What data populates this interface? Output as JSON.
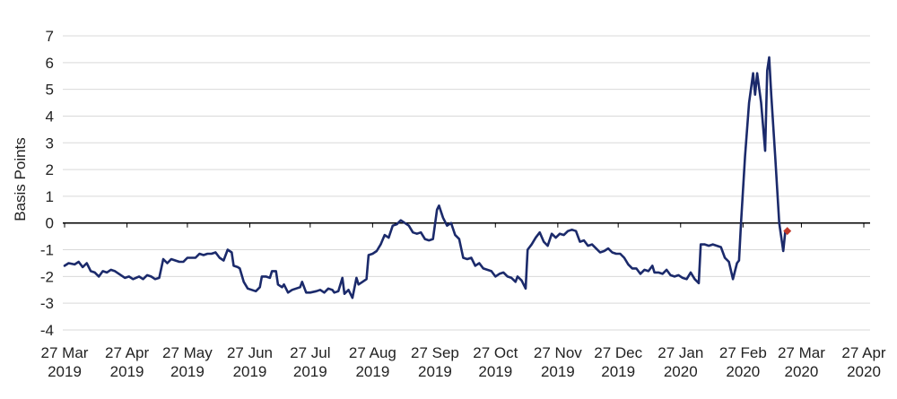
{
  "chart_data": {
    "type": "line",
    "title": "",
    "xlabel": "",
    "ylabel": "Basis Points",
    "ylim": [
      -4,
      7
    ],
    "yticks": [
      7,
      6,
      5,
      4,
      3,
      2,
      1,
      0,
      -1,
      -2,
      -3,
      -4
    ],
    "grid": true,
    "legend": "none",
    "x_ticks": [
      {
        "date": "2019-03-27",
        "line1": "27 Mar",
        "line2": "2019"
      },
      {
        "date": "2019-04-27",
        "line1": "27 Apr",
        "line2": "2019"
      },
      {
        "date": "2019-05-27",
        "line1": "27 May",
        "line2": "2019"
      },
      {
        "date": "2019-06-27",
        "line1": "27 Jun",
        "line2": "2019"
      },
      {
        "date": "2019-07-27",
        "line1": "27 Jul",
        "line2": "2019"
      },
      {
        "date": "2019-08-27",
        "line1": "27 Aug",
        "line2": "2019"
      },
      {
        "date": "2019-09-27",
        "line1": "27 Sep",
        "line2": "2019"
      },
      {
        "date": "2019-10-27",
        "line1": "27 Oct",
        "line2": "2019"
      },
      {
        "date": "2019-11-27",
        "line1": "27 Nov",
        "line2": "2019"
      },
      {
        "date": "2019-12-27",
        "line1": "27 Dec",
        "line2": "2019"
      },
      {
        "date": "2020-01-27",
        "line1": "27 Jan",
        "line2": "2020"
      },
      {
        "date": "2020-02-27",
        "line1": "27 Feb",
        "line2": "2020"
      },
      {
        "date": "2020-03-27",
        "line1": "27 Mar",
        "line2": "2020"
      },
      {
        "date": "2020-04-27",
        "line1": "27 Apr",
        "line2": "2020"
      }
    ],
    "series": [
      {
        "color": "#1b2a6b",
        "points": [
          {
            "x": "2019-03-27",
            "y": -1.6
          },
          {
            "x": "2019-03-29",
            "y": -1.5
          },
          {
            "x": "2019-04-01",
            "y": -1.55
          },
          {
            "x": "2019-04-03",
            "y": -1.45
          },
          {
            "x": "2019-04-05",
            "y": -1.65
          },
          {
            "x": "2019-04-07",
            "y": -1.5
          },
          {
            "x": "2019-04-09",
            "y": -1.8
          },
          {
            "x": "2019-04-11",
            "y": -1.85
          },
          {
            "x": "2019-04-13",
            "y": -2.0
          },
          {
            "x": "2019-04-15",
            "y": -1.8
          },
          {
            "x": "2019-04-17",
            "y": -1.85
          },
          {
            "x": "2019-04-19",
            "y": -1.75
          },
          {
            "x": "2019-04-21",
            "y": -1.8
          },
          {
            "x": "2019-04-23",
            "y": -1.9
          },
          {
            "x": "2019-04-26",
            "y": -2.05
          },
          {
            "x": "2019-04-28",
            "y": -2.0
          },
          {
            "x": "2019-04-30",
            "y": -2.1
          },
          {
            "x": "2019-05-03",
            "y": -2.0
          },
          {
            "x": "2019-05-05",
            "y": -2.1
          },
          {
            "x": "2019-05-07",
            "y": -1.95
          },
          {
            "x": "2019-05-09",
            "y": -2.0
          },
          {
            "x": "2019-05-11",
            "y": -2.1
          },
          {
            "x": "2019-05-13",
            "y": -2.05
          },
          {
            "x": "2019-05-15",
            "y": -1.35
          },
          {
            "x": "2019-05-17",
            "y": -1.5
          },
          {
            "x": "2019-05-19",
            "y": -1.35
          },
          {
            "x": "2019-05-21",
            "y": -1.4
          },
          {
            "x": "2019-05-23",
            "y": -1.45
          },
          {
            "x": "2019-05-25",
            "y": -1.45
          },
          {
            "x": "2019-05-27",
            "y": -1.3
          },
          {
            "x": "2019-05-29",
            "y": -1.3
          },
          {
            "x": "2019-05-31",
            "y": -1.3
          },
          {
            "x": "2019-06-02",
            "y": -1.15
          },
          {
            "x": "2019-06-04",
            "y": -1.2
          },
          {
            "x": "2019-06-06",
            "y": -1.15
          },
          {
            "x": "2019-06-08",
            "y": -1.15
          },
          {
            "x": "2019-06-10",
            "y": -1.1
          },
          {
            "x": "2019-06-12",
            "y": -1.3
          },
          {
            "x": "2019-06-14",
            "y": -1.4
          },
          {
            "x": "2019-06-16",
            "y": -1.0
          },
          {
            "x": "2019-06-18",
            "y": -1.1
          },
          {
            "x": "2019-06-19",
            "y": -1.6
          },
          {
            "x": "2019-06-21",
            "y": -1.65
          },
          {
            "x": "2019-06-22",
            "y": -1.7
          },
          {
            "x": "2019-06-24",
            "y": -2.2
          },
          {
            "x": "2019-06-26",
            "y": -2.45
          },
          {
            "x": "2019-06-28",
            "y": -2.5
          },
          {
            "x": "2019-06-30",
            "y": -2.55
          },
          {
            "x": "2019-07-02",
            "y": -2.4
          },
          {
            "x": "2019-07-03",
            "y": -2.0
          },
          {
            "x": "2019-07-05",
            "y": -2.0
          },
          {
            "x": "2019-07-07",
            "y": -2.05
          },
          {
            "x": "2019-07-08",
            "y": -1.8
          },
          {
            "x": "2019-07-10",
            "y": -1.8
          },
          {
            "x": "2019-07-11",
            "y": -2.3
          },
          {
            "x": "2019-07-13",
            "y": -2.4
          },
          {
            "x": "2019-07-14",
            "y": -2.3
          },
          {
            "x": "2019-07-16",
            "y": -2.6
          },
          {
            "x": "2019-07-18",
            "y": -2.5
          },
          {
            "x": "2019-07-20",
            "y": -2.45
          },
          {
            "x": "2019-07-22",
            "y": -2.4
          },
          {
            "x": "2019-07-23",
            "y": -2.2
          },
          {
            "x": "2019-07-25",
            "y": -2.6
          },
          {
            "x": "2019-07-27",
            "y": -2.6
          },
          {
            "x": "2019-07-30",
            "y": -2.55
          },
          {
            "x": "2019-08-01",
            "y": -2.5
          },
          {
            "x": "2019-08-03",
            "y": -2.6
          },
          {
            "x": "2019-08-05",
            "y": -2.45
          },
          {
            "x": "2019-08-07",
            "y": -2.5
          },
          {
            "x": "2019-08-08",
            "y": -2.6
          },
          {
            "x": "2019-08-10",
            "y": -2.55
          },
          {
            "x": "2019-08-12",
            "y": -2.05
          },
          {
            "x": "2019-08-13",
            "y": -2.65
          },
          {
            "x": "2019-08-15",
            "y": -2.5
          },
          {
            "x": "2019-08-17",
            "y": -2.8
          },
          {
            "x": "2019-08-19",
            "y": -2.05
          },
          {
            "x": "2019-08-20",
            "y": -2.3
          },
          {
            "x": "2019-08-22",
            "y": -2.2
          },
          {
            "x": "2019-08-24",
            "y": -2.1
          },
          {
            "x": "2019-08-25",
            "y": -1.2
          },
          {
            "x": "2019-08-27",
            "y": -1.15
          },
          {
            "x": "2019-08-29",
            "y": -1.05
          },
          {
            "x": "2019-08-31",
            "y": -0.8
          },
          {
            "x": "2019-09-02",
            "y": -0.45
          },
          {
            "x": "2019-09-04",
            "y": -0.55
          },
          {
            "x": "2019-09-06",
            "y": -0.1
          },
          {
            "x": "2019-09-08",
            "y": -0.05
          },
          {
            "x": "2019-09-10",
            "y": 0.1
          },
          {
            "x": "2019-09-12",
            "y": 0.0
          },
          {
            "x": "2019-09-14",
            "y": -0.1
          },
          {
            "x": "2019-09-16",
            "y": -0.35
          },
          {
            "x": "2019-09-18",
            "y": -0.4
          },
          {
            "x": "2019-09-20",
            "y": -0.35
          },
          {
            "x": "2019-09-22",
            "y": -0.6
          },
          {
            "x": "2019-09-24",
            "y": -0.65
          },
          {
            "x": "2019-09-26",
            "y": -0.6
          },
          {
            "x": "2019-09-28",
            "y": 0.5
          },
          {
            "x": "2019-09-29",
            "y": 0.65
          },
          {
            "x": "2019-10-01",
            "y": 0.2
          },
          {
            "x": "2019-10-03",
            "y": -0.1
          },
          {
            "x": "2019-10-05",
            "y": 0.0
          },
          {
            "x": "2019-10-07",
            "y": -0.45
          },
          {
            "x": "2019-10-09",
            "y": -0.6
          },
          {
            "x": "2019-10-11",
            "y": -1.3
          },
          {
            "x": "2019-10-13",
            "y": -1.35
          },
          {
            "x": "2019-10-15",
            "y": -1.3
          },
          {
            "x": "2019-10-17",
            "y": -1.6
          },
          {
            "x": "2019-10-19",
            "y": -1.5
          },
          {
            "x": "2019-10-21",
            "y": -1.7
          },
          {
            "x": "2019-10-23",
            "y": -1.75
          },
          {
            "x": "2019-10-25",
            "y": -1.8
          },
          {
            "x": "2019-10-27",
            "y": -2.0
          },
          {
            "x": "2019-10-29",
            "y": -1.9
          },
          {
            "x": "2019-10-31",
            "y": -1.85
          },
          {
            "x": "2019-11-02",
            "y": -2.0
          },
          {
            "x": "2019-11-04",
            "y": -2.05
          },
          {
            "x": "2019-11-06",
            "y": -2.2
          },
          {
            "x": "2019-11-07",
            "y": -2.0
          },
          {
            "x": "2019-11-09",
            "y": -2.15
          },
          {
            "x": "2019-11-11",
            "y": -2.45
          },
          {
            "x": "2019-11-12",
            "y": -1.0
          },
          {
            "x": "2019-11-14",
            "y": -0.8
          },
          {
            "x": "2019-11-16",
            "y": -0.55
          },
          {
            "x": "2019-11-18",
            "y": -0.35
          },
          {
            "x": "2019-11-20",
            "y": -0.7
          },
          {
            "x": "2019-11-22",
            "y": -0.85
          },
          {
            "x": "2019-11-24",
            "y": -0.4
          },
          {
            "x": "2019-11-26",
            "y": -0.55
          },
          {
            "x": "2019-11-28",
            "y": -0.4
          },
          {
            "x": "2019-11-30",
            "y": -0.45
          },
          {
            "x": "2019-12-02",
            "y": -0.3
          },
          {
            "x": "2019-12-04",
            "y": -0.25
          },
          {
            "x": "2019-12-06",
            "y": -0.3
          },
          {
            "x": "2019-12-08",
            "y": -0.7
          },
          {
            "x": "2019-12-10",
            "y": -0.65
          },
          {
            "x": "2019-12-12",
            "y": -0.85
          },
          {
            "x": "2019-12-14",
            "y": -0.8
          },
          {
            "x": "2019-12-16",
            "y": -0.95
          },
          {
            "x": "2019-12-18",
            "y": -1.1
          },
          {
            "x": "2019-12-20",
            "y": -1.05
          },
          {
            "x": "2019-12-22",
            "y": -0.95
          },
          {
            "x": "2019-12-24",
            "y": -1.1
          },
          {
            "x": "2019-12-26",
            "y": -1.15
          },
          {
            "x": "2019-12-28",
            "y": -1.15
          },
          {
            "x": "2019-12-30",
            "y": -1.3
          },
          {
            "x": "2020-01-01",
            "y": -1.55
          },
          {
            "x": "2020-01-03",
            "y": -1.7
          },
          {
            "x": "2020-01-05",
            "y": -1.7
          },
          {
            "x": "2020-01-07",
            "y": -1.9
          },
          {
            "x": "2020-01-09",
            "y": -1.75
          },
          {
            "x": "2020-01-11",
            "y": -1.8
          },
          {
            "x": "2020-01-13",
            "y": -1.6
          },
          {
            "x": "2020-01-14",
            "y": -1.85
          },
          {
            "x": "2020-01-16",
            "y": -1.85
          },
          {
            "x": "2020-01-18",
            "y": -1.9
          },
          {
            "x": "2020-01-20",
            "y": -1.75
          },
          {
            "x": "2020-01-22",
            "y": -1.95
          },
          {
            "x": "2020-01-24",
            "y": -2.0
          },
          {
            "x": "2020-01-26",
            "y": -1.95
          },
          {
            "x": "2020-01-28",
            "y": -2.05
          },
          {
            "x": "2020-01-30",
            "y": -2.1
          },
          {
            "x": "2020-02-01",
            "y": -1.85
          },
          {
            "x": "2020-02-03",
            "y": -2.1
          },
          {
            "x": "2020-02-05",
            "y": -2.25
          },
          {
            "x": "2020-02-06",
            "y": -0.8
          },
          {
            "x": "2020-02-08",
            "y": -0.8
          },
          {
            "x": "2020-02-10",
            "y": -0.85
          },
          {
            "x": "2020-02-12",
            "y": -0.8
          },
          {
            "x": "2020-02-14",
            "y": -0.85
          },
          {
            "x": "2020-02-16",
            "y": -0.9
          },
          {
            "x": "2020-02-18",
            "y": -1.3
          },
          {
            "x": "2020-02-20",
            "y": -1.45
          },
          {
            "x": "2020-02-22",
            "y": -2.1
          },
          {
            "x": "2020-02-24",
            "y": -1.5
          },
          {
            "x": "2020-02-25",
            "y": -1.4
          },
          {
            "x": "2020-02-26",
            "y": 0.0
          },
          {
            "x": "2020-02-28",
            "y": 2.5
          },
          {
            "x": "2020-03-01",
            "y": 4.5
          },
          {
            "x": "2020-03-03",
            "y": 5.6
          },
          {
            "x": "2020-03-04",
            "y": 4.8
          },
          {
            "x": "2020-03-05",
            "y": 5.6
          },
          {
            "x": "2020-03-07",
            "y": 4.5
          },
          {
            "x": "2020-03-09",
            "y": 2.7
          },
          {
            "x": "2020-03-10",
            "y": 5.7
          },
          {
            "x": "2020-03-11",
            "y": 6.2
          },
          {
            "x": "2020-03-12",
            "y": 4.8
          },
          {
            "x": "2020-03-14",
            "y": 2.5
          },
          {
            "x": "2020-03-16",
            "y": 0.0
          },
          {
            "x": "2020-03-18",
            "y": -1.05
          },
          {
            "x": "2020-03-19",
            "y": -0.3
          }
        ]
      }
    ],
    "highlight_point": {
      "x": "2020-03-20",
      "y": -0.3,
      "color": "#c0392b"
    }
  }
}
